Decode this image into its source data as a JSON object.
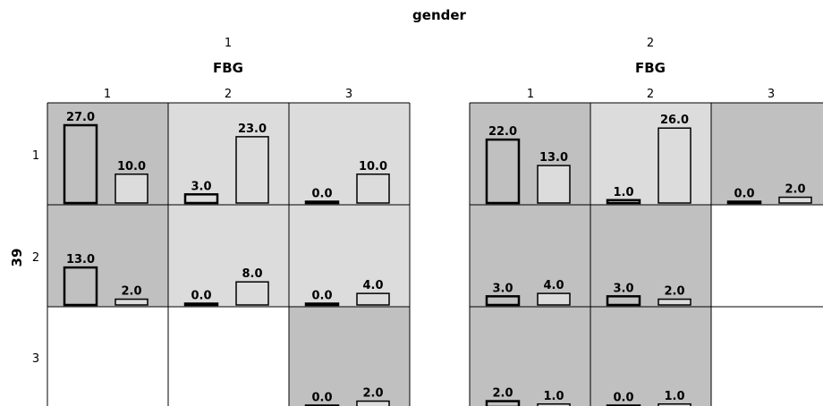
{
  "chart_data": {
    "type": "bar",
    "facet_title": "gender",
    "column_axis_title": "FBG",
    "row_axis_title": "39",
    "gender_levels": [
      "1",
      "2"
    ],
    "fbg_levels": [
      "1",
      "2",
      "3"
    ],
    "row_levels": [
      "1",
      "2",
      "3"
    ],
    "colors": {
      "cell_dark": "#c0c0c0",
      "cell_light": "#dcdcdc",
      "bar_fill": "#dcdcdc",
      "grid": "#000000"
    },
    "cells": [
      {
        "gender": "1",
        "row": "1",
        "fbg": "1",
        "shade": "dark",
        "values": [
          27.0,
          10.0
        ],
        "labels": [
          "27.0",
          "10.0"
        ]
      },
      {
        "gender": "1",
        "row": "1",
        "fbg": "2",
        "shade": "light",
        "values": [
          3.0,
          23.0
        ],
        "labels": [
          "3.0",
          "23.0"
        ]
      },
      {
        "gender": "1",
        "row": "1",
        "fbg": "3",
        "shade": "light",
        "values": [
          0.0,
          10.0
        ],
        "labels": [
          "0.0",
          "10.0"
        ]
      },
      {
        "gender": "1",
        "row": "2",
        "fbg": "1",
        "shade": "dark",
        "values": [
          13.0,
          2.0
        ],
        "labels": [
          "13.0",
          "2.0"
        ]
      },
      {
        "gender": "1",
        "row": "2",
        "fbg": "2",
        "shade": "light",
        "values": [
          0.0,
          8.0
        ],
        "labels": [
          "0.0",
          "8.0"
        ]
      },
      {
        "gender": "1",
        "row": "2",
        "fbg": "3",
        "shade": "light",
        "values": [
          0.0,
          4.0
        ],
        "labels": [
          "0.0",
          "4.0"
        ]
      },
      {
        "gender": "1",
        "row": "3",
        "fbg": "1",
        "shade": "empty",
        "values": [],
        "labels": []
      },
      {
        "gender": "1",
        "row": "3",
        "fbg": "2",
        "shade": "empty",
        "values": [],
        "labels": []
      },
      {
        "gender": "1",
        "row": "3",
        "fbg": "3",
        "shade": "dark",
        "values": [
          0.0,
          2.0
        ],
        "labels": [
          "0.0",
          "2.0"
        ]
      },
      {
        "gender": "2",
        "row": "1",
        "fbg": "1",
        "shade": "dark",
        "values": [
          22.0,
          13.0
        ],
        "labels": [
          "22.0",
          "13.0"
        ]
      },
      {
        "gender": "2",
        "row": "1",
        "fbg": "2",
        "shade": "light",
        "values": [
          1.0,
          26.0
        ],
        "labels": [
          "1.0",
          "26.0"
        ]
      },
      {
        "gender": "2",
        "row": "1",
        "fbg": "3",
        "shade": "dark",
        "values": [
          0.0,
          2.0
        ],
        "labels": [
          "0.0",
          "2.0"
        ]
      },
      {
        "gender": "2",
        "row": "2",
        "fbg": "1",
        "shade": "dark",
        "values": [
          3.0,
          4.0
        ],
        "labels": [
          "3.0",
          "4.0"
        ]
      },
      {
        "gender": "2",
        "row": "2",
        "fbg": "2",
        "shade": "dark",
        "values": [
          3.0,
          2.0
        ],
        "labels": [
          "3.0",
          "2.0"
        ]
      },
      {
        "gender": "2",
        "row": "2",
        "fbg": "3",
        "shade": "empty",
        "values": [],
        "labels": []
      },
      {
        "gender": "2",
        "row": "3",
        "fbg": "1",
        "shade": "dark",
        "values": [
          2.0,
          1.0
        ],
        "labels": [
          "2.0",
          "1.0"
        ]
      },
      {
        "gender": "2",
        "row": "3",
        "fbg": "2",
        "shade": "dark",
        "values": [
          0.0,
          1.0
        ],
        "labels": [
          "0.0",
          "1.0"
        ]
      },
      {
        "gender": "2",
        "row": "3",
        "fbg": "3",
        "shade": "empty",
        "values": [],
        "labels": []
      }
    ]
  }
}
